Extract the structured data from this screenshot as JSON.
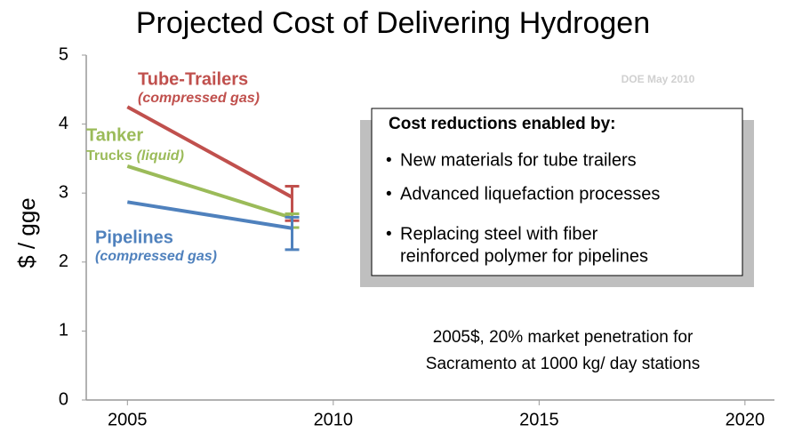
{
  "chart_data": {
    "type": "line",
    "title": "Projected Cost of Delivering Hydrogen",
    "ylabel": "$ / gge",
    "source": "DOE May 2010",
    "xlim": [
      2004,
      2020.5
    ],
    "xticks": [
      2005,
      2010,
      2015,
      2020
    ],
    "ylim": [
      0,
      5
    ],
    "yticks": [
      0,
      1,
      2,
      3,
      4,
      5
    ],
    "series": [
      {
        "label": "Tube-Trailers",
        "note": "(compressed gas)",
        "color": "#c0504d",
        "x": [
          2005,
          2009
        ],
        "values": [
          4.25,
          2.94
        ],
        "range": [
          2.6,
          3.1
        ]
      },
      {
        "label": "Tanker",
        "label2": "Trucks",
        "note": "(liquid)",
        "color": "#9bbb59",
        "x": [
          2005,
          2009
        ],
        "values": [
          3.39,
          2.64
        ],
        "range": [
          2.5,
          2.7
        ]
      },
      {
        "label": "Pipelines",
        "note": "(compressed gas)",
        "color": "#4f81bd",
        "x": [
          2005,
          2009
        ],
        "values": [
          2.87,
          2.49
        ],
        "range": [
          2.18,
          2.65
        ]
      }
    ],
    "box": {
      "title": "Cost reductions enabled by:",
      "items": [
        "New materials for tube trailers",
        "Advanced liquefaction processes",
        "Replacing steel with fiber",
        "reinforced polymer for pipelines"
      ]
    },
    "footnote": [
      "2005$, 20% market penetration for",
      "Sacramento at 1000 kg/ day stations"
    ]
  }
}
